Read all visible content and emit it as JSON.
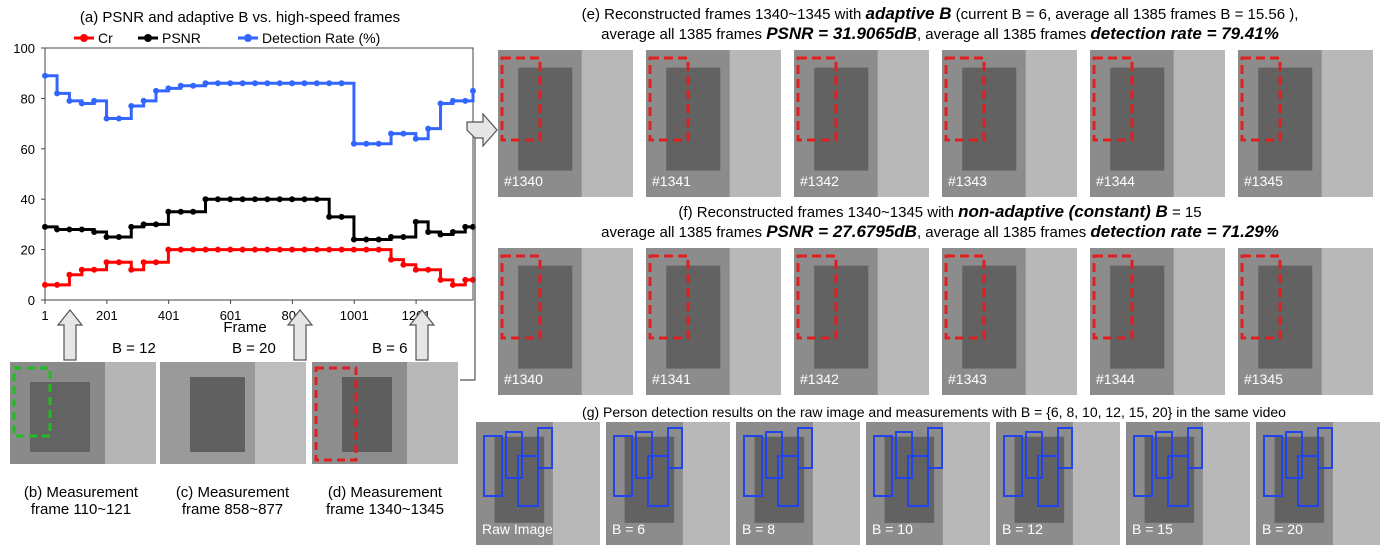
{
  "captions": {
    "a": "(a) PSNR and adaptive B vs. high-speed frames",
    "b": [
      "(b) Measurement",
      "frame 110~121"
    ],
    "c": [
      "(c) Measurement",
      "frame 858~877"
    ],
    "d": [
      "(d) Measurement",
      "frame 1340~1345"
    ],
    "e_line1_pre": "(e) Reconstructed frames 1340~1345 with ",
    "e_line1_bold": "adaptive B",
    "e_line1_post": " (current B = 6, average all 1385 frames B = 15.56 ),",
    "e_line2_pre": "average all 1385 frames ",
    "e_line2_bold1": "PSNR = 31.9065dB",
    "e_line2_mid": ", average all 1385 frames ",
    "e_line2_bold2": "detection rate = 79.41%",
    "f_line1_pre": "(f) Reconstructed frames 1340~1345 with ",
    "f_line1_bold": "non-adaptive (constant) B",
    "f_line1_post": " = 15",
    "f_line2_pre": "average all 1385 frames ",
    "f_line2_bold1": "PSNR = 27.6795dB",
    "f_line2_mid": ", average all 1385 frames ",
    "f_line2_bold2": "detection rate = 71.29%",
    "g": "(g) Person detection results on the raw image and measurements with B = {6, 8, 10, 12, 15, 20} in the same video"
  },
  "b_values": [
    "B = 12",
    "B = 20",
    "B = 6"
  ],
  "row_e_labels": [
    "#1340",
    "#1341",
    "#1342",
    "#1343",
    "#1344",
    "#1345"
  ],
  "row_f_labels": [
    "#1340",
    "#1341",
    "#1342",
    "#1343",
    "#1344",
    "#1345"
  ],
  "row_g_labels": [
    "Raw Image",
    "B = 6",
    "B = 8",
    "B = 10",
    "B = 12",
    "B = 15",
    "B = 20"
  ],
  "colors": {
    "cr": "#ff0000",
    "psnr": "#000000",
    "detection": "#3366ff",
    "box_red": "#e02020",
    "box_green": "#22bb22",
    "box_blue": "#2244ee"
  },
  "chart_data": {
    "type": "line",
    "title": "(a) PSNR and adaptive B vs. high-speed frames",
    "xlabel": "Frame",
    "ylabel": "",
    "xlim": [
      1,
      1385
    ],
    "ylim": [
      0,
      100
    ],
    "xticks": [
      1,
      201,
      401,
      601,
      801,
      1001,
      1201
    ],
    "yticks": [
      0,
      20,
      40,
      60,
      80,
      100
    ],
    "legend": {
      "placement": "top",
      "entries": [
        "Cr",
        "PSNR",
        "Detection Rate (%)"
      ]
    },
    "series": [
      {
        "name": "Cr",
        "x": [
          1,
          40,
          80,
          120,
          160,
          200,
          240,
          280,
          320,
          360,
          400,
          440,
          480,
          520,
          560,
          600,
          640,
          680,
          720,
          760,
          800,
          840,
          880,
          920,
          960,
          1000,
          1040,
          1080,
          1120,
          1160,
          1200,
          1240,
          1280,
          1320,
          1360,
          1385
        ],
        "y": [
          6,
          6,
          10,
          12,
          12,
          15,
          15,
          12,
          15,
          15,
          20,
          20,
          20,
          20,
          20,
          20,
          20,
          20,
          20,
          20,
          20,
          20,
          20,
          20,
          20,
          20,
          20,
          20,
          16,
          14,
          12,
          12,
          8,
          6,
          8,
          8
        ]
      },
      {
        "name": "PSNR",
        "x": [
          1,
          40,
          80,
          120,
          160,
          200,
          240,
          280,
          320,
          360,
          400,
          440,
          480,
          520,
          560,
          600,
          640,
          680,
          720,
          760,
          800,
          840,
          880,
          920,
          960,
          1000,
          1040,
          1080,
          1120,
          1160,
          1200,
          1240,
          1280,
          1320,
          1360,
          1385
        ],
        "y": [
          29,
          28,
          28,
          28,
          27,
          25,
          25,
          29,
          30,
          30,
          35,
          35,
          35,
          40,
          40,
          40,
          40,
          40,
          40,
          40,
          40,
          40,
          40,
          33,
          33,
          24,
          24,
          24,
          25,
          25,
          31,
          27,
          26,
          27,
          29,
          29
        ]
      },
      {
        "name": "Detection Rate (%)",
        "x": [
          1,
          40,
          80,
          120,
          160,
          200,
          240,
          280,
          320,
          360,
          400,
          440,
          480,
          520,
          560,
          600,
          640,
          680,
          720,
          760,
          800,
          840,
          880,
          920,
          960,
          1000,
          1040,
          1080,
          1120,
          1160,
          1200,
          1240,
          1280,
          1320,
          1360,
          1385
        ],
        "y": [
          89,
          82,
          79,
          78,
          79,
          72,
          72,
          77,
          79,
          83,
          84,
          85,
          85,
          86,
          86,
          86,
          86,
          86,
          86,
          86,
          86,
          86,
          86,
          86,
          86,
          62,
          62,
          62,
          66,
          66,
          64,
          68,
          78,
          79,
          79,
          83
        ]
      }
    ]
  }
}
